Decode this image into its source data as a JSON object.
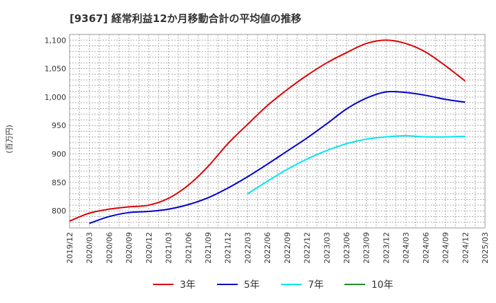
{
  "chart_data": {
    "type": "line",
    "title": "[9367]  経常利益12か月移動合計の平均値の推移",
    "ylabel": "(百万円)",
    "xlabel": "",
    "ylim": [
      770,
      1110
    ],
    "y_ticks": [
      "800",
      "850",
      "900",
      "950",
      "1,000",
      "1,050",
      "1,100"
    ],
    "y_tick_values": [
      800,
      850,
      900,
      950,
      1000,
      1050,
      1100
    ],
    "x_ticks": [
      "2019/12",
      "2020/03",
      "2020/06",
      "2020/09",
      "2020/12",
      "2021/03",
      "2021/06",
      "2021/09",
      "2021/12",
      "2022/03",
      "2022/06",
      "2022/09",
      "2022/12",
      "2023/03",
      "2023/06",
      "2023/09",
      "2023/12",
      "2024/03",
      "2024/06",
      "2024/09",
      "2024/12",
      "2025/03"
    ],
    "grid": true,
    "legend_position": "bottom",
    "series": [
      {
        "name": "3年",
        "color": "#dd0000",
        "x": [
          "2019/12",
          "2020/03",
          "2020/06",
          "2020/09",
          "2020/12",
          "2021/03",
          "2021/06",
          "2021/09",
          "2021/12",
          "2022/03",
          "2022/06",
          "2022/09",
          "2022/12",
          "2023/03",
          "2023/06",
          "2023/09",
          "2023/12",
          "2024/03",
          "2024/06",
          "2024/09",
          "2024/12"
        ],
        "values": [
          782,
          796,
          803,
          807,
          810,
          822,
          845,
          878,
          918,
          952,
          985,
          1013,
          1038,
          1060,
          1078,
          1094,
          1100,
          1094,
          1079,
          1055,
          1028
        ]
      },
      {
        "name": "5年",
        "color": "#0000cc",
        "x": [
          "2020/03",
          "2020/06",
          "2020/09",
          "2020/12",
          "2021/03",
          "2021/06",
          "2021/09",
          "2021/12",
          "2022/03",
          "2022/06",
          "2022/09",
          "2022/12",
          "2023/03",
          "2023/06",
          "2023/09",
          "2023/12",
          "2024/03",
          "2024/06",
          "2024/09",
          "2024/12"
        ],
        "values": [
          778,
          790,
          797,
          799,
          803,
          811,
          823,
          840,
          860,
          882,
          905,
          928,
          953,
          979,
          998,
          1009,
          1008,
          1003,
          996,
          991
        ]
      },
      {
        "name": "7年",
        "color": "#00e5ee",
        "x": [
          "2022/03",
          "2022/06",
          "2022/09",
          "2022/12",
          "2023/03",
          "2023/06",
          "2023/09",
          "2023/12",
          "2024/03",
          "2024/06",
          "2024/09",
          "2024/12"
        ],
        "values": [
          830,
          852,
          873,
          891,
          906,
          918,
          926,
          930,
          932,
          930,
          930,
          931
        ]
      },
      {
        "name": "10年",
        "color": "#228b22",
        "x": [],
        "values": []
      }
    ]
  }
}
